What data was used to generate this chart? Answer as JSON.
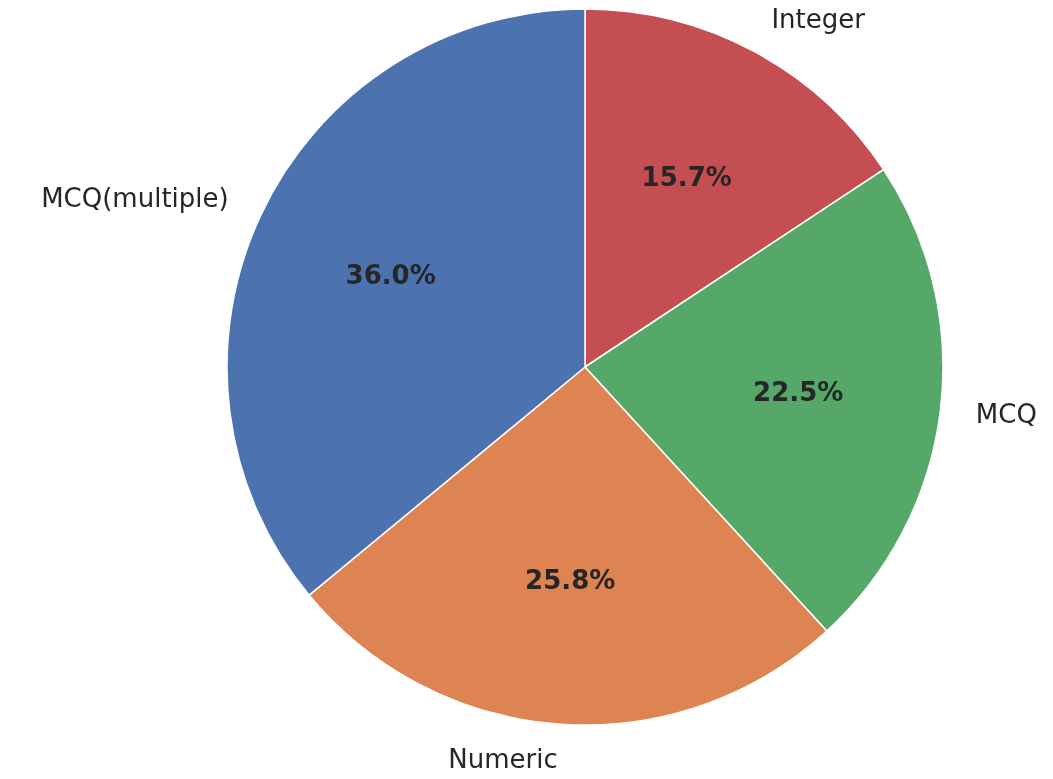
{
  "chart_data": {
    "type": "pie",
    "categories": [
      "Integer",
      "MCQ",
      "Numeric",
      "MCQ(multiple)"
    ],
    "values": [
      15.7,
      22.5,
      25.8,
      36.0
    ],
    "colors": [
      "#c44e52",
      "#55a868",
      "#dd8452",
      "#4c72b0"
    ],
    "value_labels": [
      "15.7%",
      "22.5%",
      "25.8%",
      "36.0%"
    ]
  }
}
